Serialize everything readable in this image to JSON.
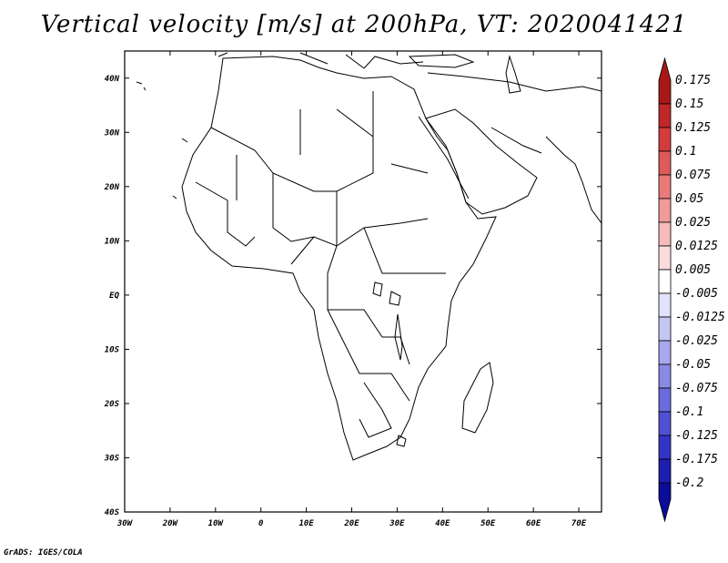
{
  "title": "Vertical velocity [m/s] at 200hPa, VT: 2020041421",
  "footer": "GrADS: IGES/COLA",
  "map": {
    "lat_labels": [
      "40N",
      "30N",
      "20N",
      "10N",
      "EQ",
      "10S",
      "20S",
      "30S",
      "40S"
    ],
    "lon_labels": [
      "30W",
      "20W",
      "10W",
      "0",
      "10E",
      "20E",
      "30E",
      "40E",
      "50E",
      "60E",
      "70E"
    ],
    "lat_range": [
      -40,
      45
    ],
    "lon_range": [
      -30,
      75
    ]
  },
  "colorbar": {
    "labels": [
      "0.175",
      "0.15",
      "0.125",
      "0.1",
      "0.075",
      "0.05",
      "0.025",
      "0.0125",
      "0.005",
      "-0.005",
      "-0.0125",
      "-0.025",
      "-0.05",
      "-0.075",
      "-0.1",
      "-0.125",
      "-0.175",
      "-0.2"
    ],
    "colors": [
      "#a81818",
      "#c02828",
      "#d43c3c",
      "#e05a5a",
      "#ea7a7a",
      "#f09a9a",
      "#f6bcbc",
      "#fadcdc",
      "#ffffff",
      "#e2e2fa",
      "#c6c6f4",
      "#a8a8ee",
      "#8a8ae6",
      "#6c6cde",
      "#5050d4",
      "#3434c4",
      "#1e1eb0",
      "#0c0c98"
    ]
  }
}
